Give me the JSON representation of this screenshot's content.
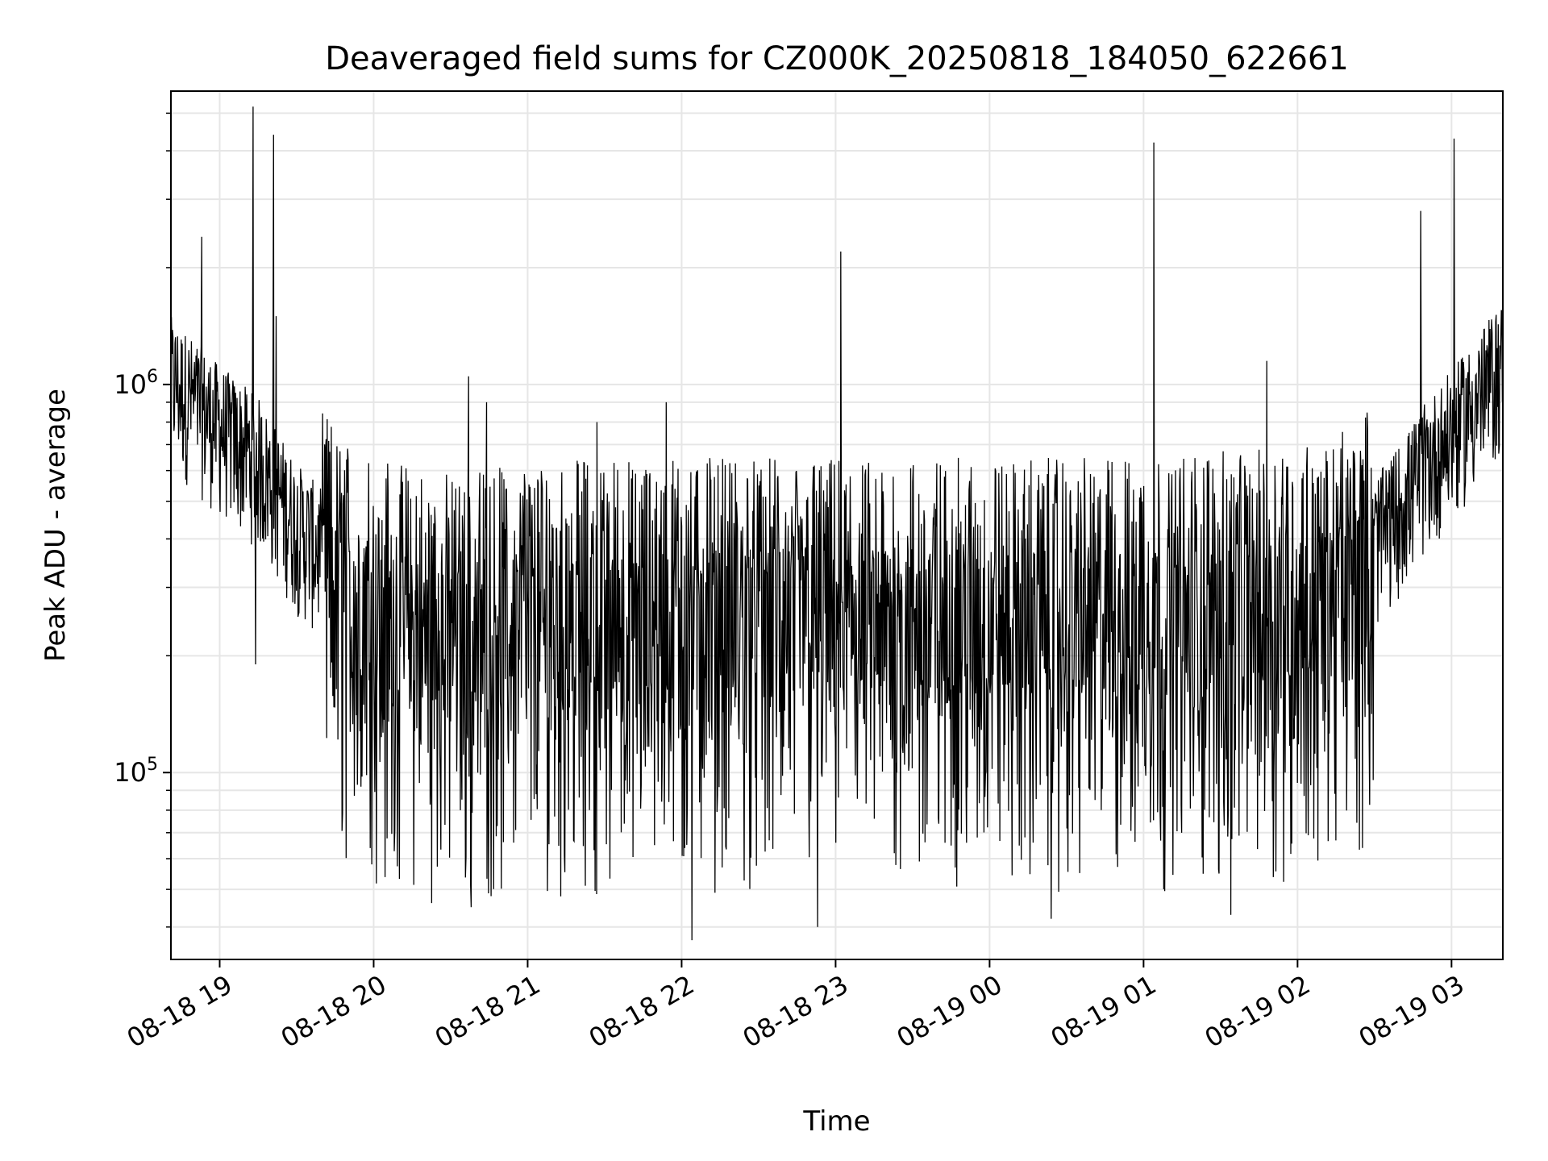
{
  "chart_data": {
    "type": "line",
    "title": "Deaveraged field sums for CZ000K_20250818_184050_622661",
    "xlabel": "Time",
    "ylabel": "Peak ADU - average",
    "yscale": "log",
    "ylim": [
      33000,
      5700000
    ],
    "xlim": [
      "08-18 18:41",
      "08-19 03:20"
    ],
    "grid": true,
    "line_color": "#000000",
    "x_ticks": [
      "08-18 19",
      "08-18 20",
      "08-18 21",
      "08-18 22",
      "08-18 23",
      "08-19 00",
      "08-19 01",
      "08-19 02",
      "08-19 03"
    ],
    "y_ticks": [
      {
        "base": "10",
        "exp": "5",
        "value": 100000
      },
      {
        "base": "10",
        "exp": "6",
        "value": 1000000
      }
    ],
    "series": [
      {
        "baseline": {
          "x": [
            "08-18 18:41",
            "08-18 19:00",
            "08-18 19:15",
            "08-18 19:30",
            "08-18 19:45",
            "08-18 20:00",
            "08-18 20:30",
            "08-18 21:00",
            "08-18 21:30",
            "08-18 22:00",
            "08-18 22:30",
            "08-18 23:00",
            "08-18 23:30",
            "08-19 00:00",
            "08-19 00:30",
            "08-19 01:00",
            "08-19 01:30",
            "08-19 02:00",
            "08-19 02:20",
            "08-19 02:35",
            "08-19 02:50",
            "08-19 03:05",
            "08-19 03:20"
          ],
          "y": [
            1000000,
            750000,
            620000,
            420000,
            330000,
            270000,
            250000,
            260000,
            270000,
            270000,
            270000,
            270000,
            270000,
            270000,
            270000,
            270000,
            280000,
            290000,
            320000,
            420000,
            600000,
            800000,
            1100000
          ]
        },
        "spikes": [
          {
            "x": "08-18 18:53",
            "y": 2400000
          },
          {
            "x": "08-18 19:13",
            "y": 5200000
          },
          {
            "x": "08-18 19:14",
            "y": 190000
          },
          {
            "x": "08-18 19:21",
            "y": 4400000
          },
          {
            "x": "08-18 19:22",
            "y": 1500000
          },
          {
            "x": "08-18 20:37",
            "y": 1050000
          },
          {
            "x": "08-18 20:44",
            "y": 900000
          },
          {
            "x": "08-18 21:27",
            "y": 800000
          },
          {
            "x": "08-18 21:54",
            "y": 900000
          },
          {
            "x": "08-18 22:04",
            "y": 37000
          },
          {
            "x": "08-18 23:02",
            "y": 2200000
          },
          {
            "x": "08-19 01:04",
            "y": 4200000
          },
          {
            "x": "08-19 01:48",
            "y": 1150000
          },
          {
            "x": "08-19 02:48",
            "y": 2800000
          },
          {
            "x": "08-19 03:01",
            "y": 4300000
          },
          {
            "x": "08-18 22:53",
            "y": 40000
          },
          {
            "x": "08-18 20:38",
            "y": 45000
          },
          {
            "x": "08-19 00:24",
            "y": 42000
          },
          {
            "x": "08-19 01:34",
            "y": 43000
          }
        ]
      }
    ]
  }
}
